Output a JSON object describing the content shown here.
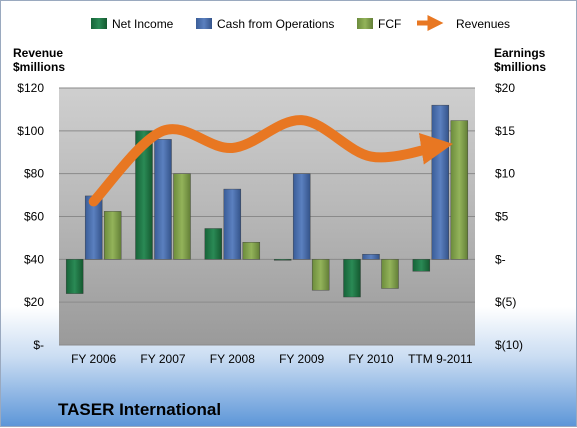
{
  "chart_data": {
    "type": "bar",
    "title": "TASER International",
    "categories": [
      "FY 2006",
      "FY 2007",
      "FY 2008",
      "FY 2009",
      "FY 2010",
      "TTM 9-2011"
    ],
    "left_axis": {
      "title_line1": "Revenue",
      "title_line2": "$millions",
      "ticks": [
        0,
        20,
        40,
        60,
        80,
        100,
        120
      ],
      "tick_labels": [
        "$-",
        "$20",
        "$40",
        "$60",
        "$80",
        "$100",
        "$120"
      ],
      "range": [
        0,
        120
      ]
    },
    "right_axis": {
      "title_line1": "Earnings",
      "title_line2": "$millions",
      "ticks": [
        -10,
        -5,
        0,
        5,
        10,
        15,
        20
      ],
      "tick_labels": [
        "$(10)",
        "$(5)",
        "$-",
        "$5",
        "$10",
        "$15",
        "$20"
      ],
      "range": [
        -10,
        20
      ]
    },
    "series": [
      {
        "name": "Net Income",
        "axis": "right",
        "type": "bar",
        "color": "#1f7a4a",
        "values": [
          -4.0,
          15.0,
          3.6,
          -0.1,
          -4.4,
          -1.4
        ]
      },
      {
        "name": "Cash from Operations",
        "axis": "right",
        "type": "bar",
        "color": "#4a6eaa",
        "values": [
          7.4,
          14.0,
          8.2,
          10.0,
          0.6,
          18.0
        ]
      },
      {
        "name": "FCF",
        "axis": "right",
        "type": "bar",
        "color": "#7fa14a",
        "values": [
          5.6,
          10.0,
          2.0,
          -3.6,
          -3.4,
          16.2
        ]
      },
      {
        "name": "Revenues",
        "axis": "left",
        "type": "line",
        "color": "#e87722",
        "values": [
          67,
          100,
          92,
          105,
          88,
          93
        ]
      }
    ],
    "grid": true,
    "legend": "top"
  }
}
